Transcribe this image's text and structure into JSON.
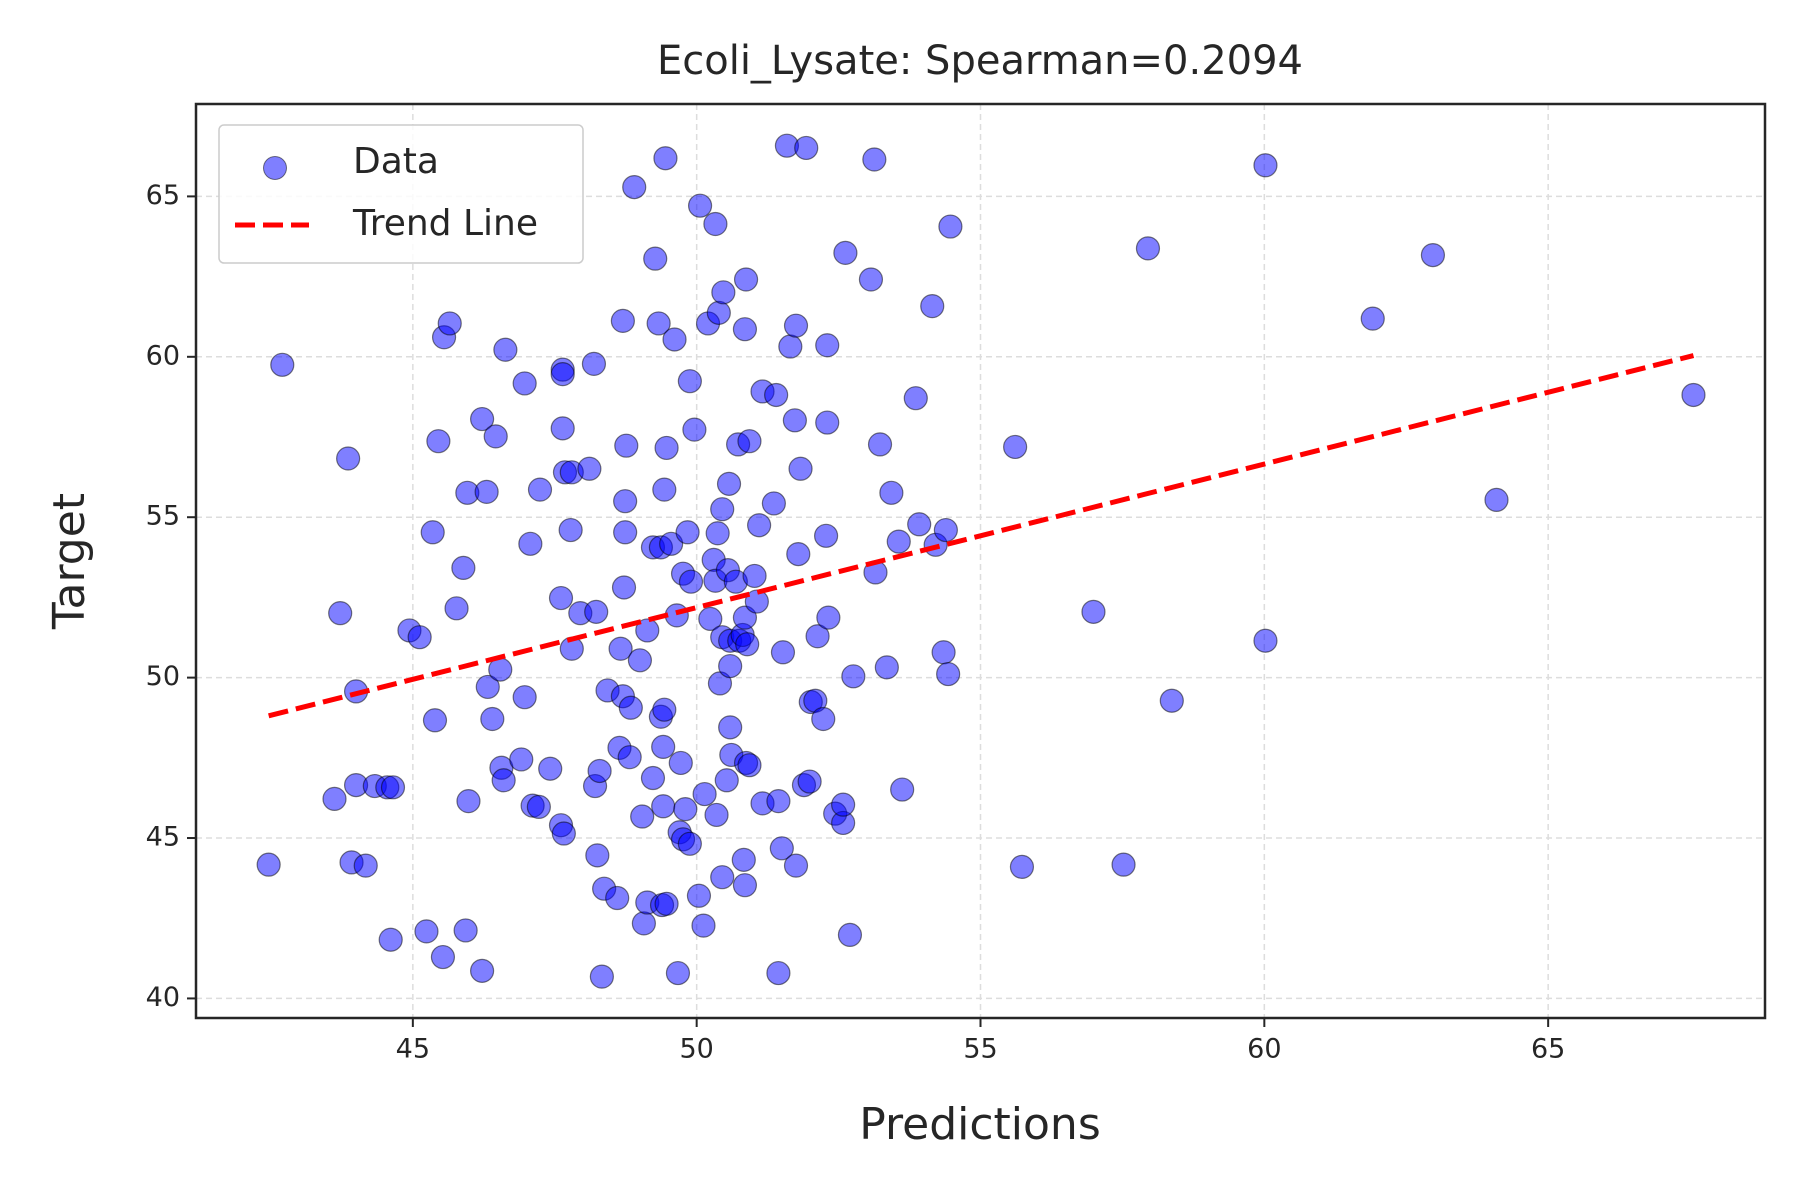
{
  "chart_data": {
    "type": "scatter",
    "title": "Ecoli_Lysate: Spearman=0.2094",
    "x_label": "Predictions",
    "y_label": "Target",
    "xlim": [
      41.18,
      68.82
    ],
    "ylim": [
      39.39,
      67.88
    ],
    "xticks": [
      45,
      50,
      55,
      60,
      65
    ],
    "yticks": [
      40,
      45,
      50,
      55,
      60,
      65
    ],
    "grid": true,
    "legend": "upper left",
    "series": [
      {
        "name": "Data",
        "color": "#0000ff",
        "x": [
          42.46,
          42.7,
          43.62,
          43.72,
          43.86,
          43.92,
          44.0,
          44.0,
          44.17,
          44.33,
          44.55,
          44.65,
          44.61,
          44.94,
          45.12,
          45.24,
          45.35,
          45.39,
          45.45,
          45.53,
          45.55,
          45.65,
          45.77,
          45.89,
          45.93,
          45.96,
          45.98,
          46.22,
          46.22,
          46.3,
          46.32,
          46.4,
          46.46,
          46.54,
          46.56,
          46.6,
          46.63,
          46.91,
          46.97,
          46.97,
          47.07,
          47.11,
          47.22,
          47.24,
          47.42,
          47.61,
          47.61,
          47.64,
          47.64,
          47.64,
          47.66,
          47.68,
          47.78,
          47.8,
          47.8,
          47.95,
          48.11,
          48.19,
          48.21,
          48.23,
          48.25,
          48.29,
          48.33,
          48.37,
          48.43,
          48.6,
          48.64,
          48.66,
          48.7,
          48.7,
          48.72,
          48.74,
          48.74,
          48.76,
          48.82,
          48.84,
          48.9,
          49.0,
          49.04,
          49.07,
          49.13,
          49.13,
          49.23,
          49.23,
          49.27,
          49.33,
          49.37,
          49.37,
          49.39,
          49.43,
          49.43,
          49.41,
          49.41,
          49.45,
          49.47,
          49.47,
          49.55,
          49.61,
          49.65,
          49.67,
          49.7,
          49.72,
          49.76,
          49.76,
          49.8,
          49.84,
          49.88,
          49.88,
          49.9,
          49.96,
          50.04,
          50.06,
          50.12,
          50.14,
          50.2,
          50.24,
          50.3,
          50.33,
          50.33,
          50.35,
          50.37,
          50.39,
          50.41,
          50.45,
          50.45,
          50.45,
          50.47,
          50.53,
          50.55,
          50.57,
          50.59,
          50.59,
          50.59,
          50.61,
          50.69,
          50.73,
          50.75,
          50.81,
          50.85,
          50.85,
          50.85,
          50.87,
          50.87,
          50.89,
          50.83,
          50.93,
          50.93,
          51.02,
          51.06,
          51.1,
          51.16,
          51.16,
          51.36,
          51.4,
          51.44,
          51.44,
          51.5,
          51.52,
          51.59,
          51.65,
          51.73,
          51.75,
          51.75,
          51.79,
          51.83,
          51.89,
          51.93,
          51.99,
          52.01,
          52.09,
          52.13,
          52.23,
          52.28,
          52.3,
          52.3,
          52.32,
          52.44,
          52.58,
          52.58,
          52.62,
          52.7,
          52.76,
          53.07,
          53.13,
          53.15,
          53.23,
          53.35,
          53.43,
          53.56,
          53.62,
          53.86,
          53.92,
          54.15,
          54.21,
          54.35,
          54.39,
          54.43,
          54.47,
          55.61,
          55.73,
          56.99,
          57.52,
          57.95,
          58.37,
          60.02,
          60.02,
          61.91,
          62.97,
          64.09,
          67.56
        ],
        "values": [
          44.17,
          59.75,
          46.22,
          52.01,
          56.83,
          44.24,
          49.57,
          46.65,
          44.14,
          46.62,
          46.58,
          46.58,
          41.83,
          51.47,
          51.26,
          42.09,
          54.53,
          48.67,
          57.37,
          41.29,
          60.61,
          61.04,
          52.16,
          53.42,
          42.12,
          55.76,
          46.15,
          58.06,
          40.86,
          55.79,
          49.71,
          48.71,
          57.52,
          50.25,
          47.19,
          46.8,
          60.22,
          47.45,
          59.17,
          49.39,
          54.17,
          46.01,
          45.97,
          55.86,
          47.16,
          52.48,
          45.4,
          57.77,
          59.6,
          59.46,
          45.14,
          56.4,
          54.6,
          50.9,
          56.4,
          52.01,
          56.51,
          59.78,
          46.62,
          52.05,
          44.46,
          47.09,
          40.68,
          43.42,
          49.6,
          43.13,
          47.81,
          50.9,
          61.12,
          49.42,
          52.81,
          55.5,
          54.53,
          57.23,
          47.52,
          49.06,
          65.29,
          50.54,
          45.67,
          42.34,
          51.47,
          42.99,
          54.06,
          46.87,
          63.06,
          61.04,
          54.06,
          48.78,
          42.91,
          49.0,
          55.86,
          47.84,
          45.99,
          66.19,
          57.16,
          42.95,
          54.17,
          60.54,
          51.94,
          40.79,
          45.18,
          47.34,
          53.24,
          44.96,
          45.9,
          54.53,
          59.24,
          44.82,
          52.99,
          57.73,
          43.2,
          64.71,
          42.27,
          46.37,
          61.04,
          51.83,
          53.67,
          64.14,
          53.02,
          45.72,
          54.5,
          61.37,
          49.82,
          55.25,
          43.78,
          51.26,
          62.01,
          46.8,
          53.35,
          56.04,
          50.36,
          48.45,
          51.15,
          47.59,
          52.99,
          57.27,
          51.15,
          51.33,
          60.86,
          51.87,
          43.53,
          62.41,
          47.34,
          51.04,
          44.32,
          57.37,
          47.27,
          53.17,
          52.37,
          54.75,
          58.92,
          46.08,
          55.43,
          58.81,
          46.15,
          40.79,
          44.68,
          50.79,
          66.58,
          60.32,
          58.02,
          44.14,
          60.97,
          53.85,
          56.51,
          46.65,
          66.51,
          46.76,
          49.24,
          49.28,
          51.29,
          48.71,
          54.42,
          60.36,
          57.95,
          51.87,
          45.76,
          45.47,
          46.04,
          63.24,
          41.98,
          50.04,
          62.41,
          66.15,
          53.28,
          57.27,
          50.32,
          55.76,
          54.24,
          46.51,
          58.71,
          54.78,
          61.58,
          54.14,
          50.79,
          54.6,
          50.11,
          64.06,
          57.19,
          44.1,
          52.05,
          44.17,
          63.38,
          49.28,
          65.97,
          51.15,
          61.19,
          63.17,
          55.54,
          58.81
        ]
      },
      {
        "name": "Trend Line",
        "color": "#ff0000",
        "line": "dashed",
        "x": [
          42.46,
          67.56
        ],
        "values": [
          48.81,
          60.04
        ]
      }
    ]
  }
}
